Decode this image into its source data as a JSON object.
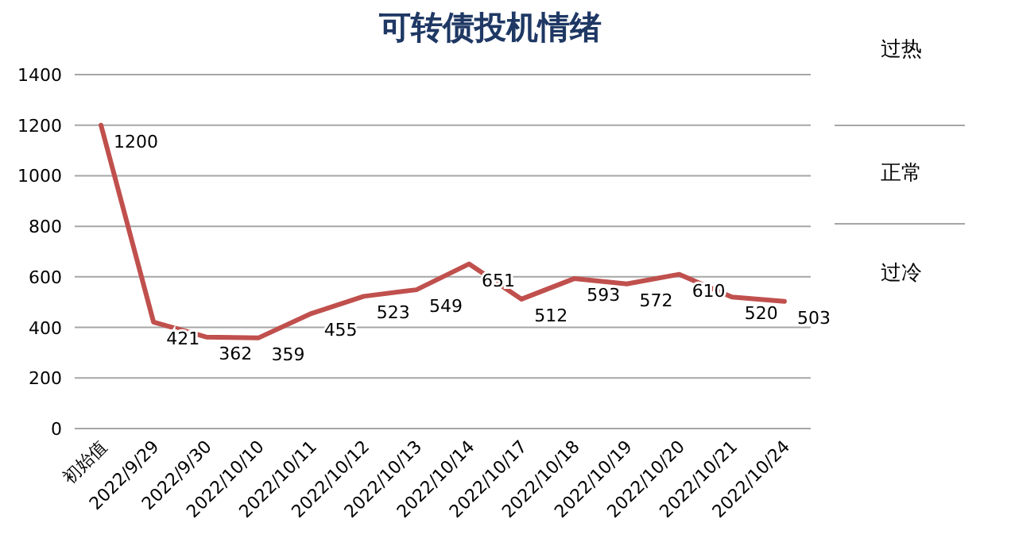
{
  "chart_data": {
    "type": "line",
    "title": "可转债投机情绪",
    "categories": [
      "初始值",
      "2022/9/29",
      "2022/9/30",
      "2022/10/10",
      "2022/10/11",
      "2022/10/12",
      "2022/10/13",
      "2022/10/14",
      "2022/10/17",
      "2022/10/18",
      "2022/10/19",
      "2022/10/20",
      "2022/10/21",
      "2022/10/24"
    ],
    "series": [
      {
        "color": "#c0504d",
        "values": [
          1200,
          421,
          362,
          359,
          455,
          523,
          549,
          651,
          512,
          593,
          572,
          610,
          520,
          503
        ]
      }
    ],
    "ylim": [
      0,
      1400
    ],
    "yticks": [
      0,
      200,
      400,
      600,
      800,
      1000,
      1200,
      1400
    ],
    "grid": "y",
    "data_labels": true,
    "annotations": [
      "过热",
      "正常",
      "过冷"
    ]
  }
}
